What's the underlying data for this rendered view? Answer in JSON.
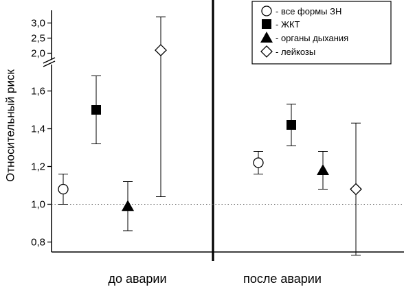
{
  "chart_data": {
    "type": "scatter",
    "ylabel": "Относительный риск",
    "groups": [
      "до аварии",
      "после аварии"
    ],
    "y_ticks_lower": [
      "0,8",
      "1,0",
      "1,2",
      "1,4",
      "1,6"
    ],
    "y_ticks_upper": [
      "2,0",
      "2,5",
      "3,0"
    ],
    "y_ticks_lower_values": [
      0.8,
      1.0,
      1.2,
      1.4,
      1.6
    ],
    "y_ticks_upper_values": [
      2.0,
      2.5,
      3.0
    ],
    "ylim_lower": [
      0.75,
      1.8
    ],
    "ylim_upper": [
      1.8,
      3.3
    ],
    "axis_break": true,
    "reference_line": 1.0,
    "legend_position": "top-right",
    "series": [
      {
        "name": "- все формы ЗН",
        "marker": "circle-open",
        "points": [
          {
            "group": "до аварии",
            "y": 1.08,
            "low": 1.0,
            "high": 1.16
          },
          {
            "group": "после аварии",
            "y": 1.22,
            "low": 1.16,
            "high": 1.28
          }
        ]
      },
      {
        "name": "- ЖКТ",
        "marker": "square-filled",
        "points": [
          {
            "group": "до аварии",
            "y": 1.5,
            "low": 1.32,
            "high": 1.68
          },
          {
            "group": "после аварии",
            "y": 1.42,
            "low": 1.31,
            "high": 1.53
          }
        ]
      },
      {
        "name": "- органы дыхания",
        "marker": "triangle-filled",
        "points": [
          {
            "group": "до аварии",
            "y": 0.99,
            "low": 0.86,
            "high": 1.12
          },
          {
            "group": "после аварии",
            "y": 1.18,
            "low": 1.08,
            "high": 1.28
          }
        ]
      },
      {
        "name": "- лейкозы",
        "marker": "diamond-open",
        "points": [
          {
            "group": "до аварии",
            "y": 2.1,
            "low": 1.04,
            "high": 3.2
          },
          {
            "group": "после аварии",
            "y": 1.08,
            "low": 0.73,
            "high": 1.43
          }
        ]
      }
    ]
  }
}
